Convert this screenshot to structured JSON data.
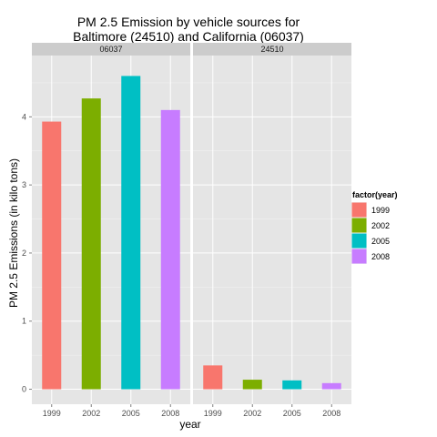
{
  "chart_data": {
    "type": "bar",
    "title_lines": [
      "PM 2.5 Emission by vehicle sources for",
      "Baltimore (24510) and California (06037)"
    ],
    "xlabel": "year",
    "ylabel": "PM 2.5 Emissions (in kilo tons)",
    "ylim": [
      -0.22,
      4.9
    ],
    "yticks": [
      "0",
      "1",
      "2",
      "3",
      "4"
    ],
    "categories": [
      "1999",
      "2002",
      "2005",
      "2008"
    ],
    "colors": [
      "#F8766D",
      "#7CAE00",
      "#00BFC4",
      "#C77CFF"
    ],
    "panels": [
      {
        "label": "06037",
        "values": [
          3.93,
          4.27,
          4.6,
          4.1
        ]
      },
      {
        "label": "24510",
        "values": [
          0.35,
          0.14,
          0.13,
          0.09
        ]
      }
    ],
    "legend": {
      "title": "factor(year)",
      "position": "right",
      "items": [
        "1999",
        "2002",
        "2005",
        "2008"
      ]
    },
    "grid": true
  }
}
